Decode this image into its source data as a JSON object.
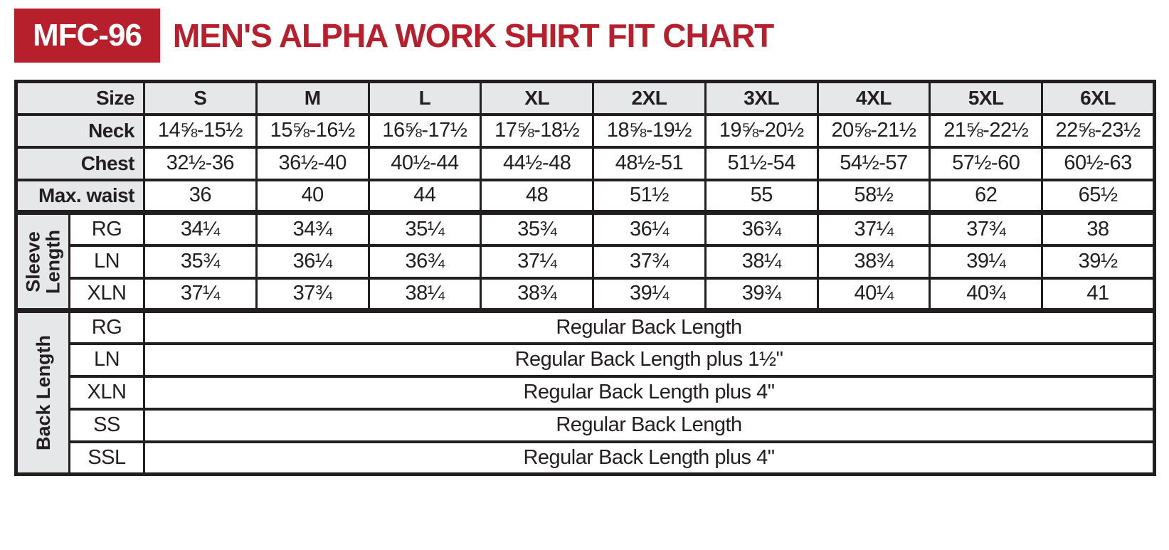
{
  "colors": {
    "brand_red": "#B81F2D",
    "cell_gray": "#E6E7E8",
    "ink": "#231F20"
  },
  "header": {
    "badge": "MFC-96",
    "title": "MEN'S ALPHA WORK SHIRT FIT CHART"
  },
  "table": {
    "size_label": "Size",
    "sizes": [
      "S",
      "M",
      "L",
      "XL",
      "2XL",
      "3XL",
      "4XL",
      "5XL",
      "6XL"
    ],
    "measurements": [
      {
        "label": "Neck",
        "values": [
          "14⅝-15½",
          "15⅝-16½",
          "16⅝-17½",
          "17⅝-18½",
          "18⅝-19½",
          "19⅝-20½",
          "20⅝-21½",
          "21⅝-22½",
          "22⅝-23½"
        ]
      },
      {
        "label": "Chest",
        "values": [
          "32½-36",
          "36½-40",
          "40½-44",
          "44½-48",
          "48½-51",
          "51½-54",
          "54½-57",
          "57½-60",
          "60½-63"
        ]
      },
      {
        "label": "Max. waist",
        "values": [
          "36",
          "40",
          "44",
          "48",
          "51½",
          "55",
          "58½",
          "62",
          "65½"
        ]
      }
    ],
    "sleeve_length": {
      "label_lines": [
        "Sleeve",
        "Length"
      ],
      "rows": [
        {
          "label": "RG",
          "values": [
            "34¼",
            "34¾",
            "35¼",
            "35¾",
            "36¼",
            "36¾",
            "37¼",
            "37¾",
            "38"
          ]
        },
        {
          "label": "LN",
          "values": [
            "35¾",
            "36¼",
            "36¾",
            "37¼",
            "37¾",
            "38¼",
            "38¾",
            "39¼",
            "39½"
          ]
        },
        {
          "label": "XLN",
          "values": [
            "37¼",
            "37¾",
            "38¼",
            "38¾",
            "39¼",
            "39¾",
            "40¼",
            "40¾",
            "41"
          ]
        }
      ]
    },
    "back_length": {
      "label_lines": [
        "Back Length"
      ],
      "rows": [
        {
          "label": "RG",
          "value": "Regular Back Length"
        },
        {
          "label": "LN",
          "value": "Regular Back Length plus 1½\""
        },
        {
          "label": "XLN",
          "value": "Regular Back Length plus 4\""
        },
        {
          "label": "SS",
          "value": "Regular Back Length"
        },
        {
          "label": "SSL",
          "value": "Regular Back Length plus 4\""
        }
      ]
    }
  }
}
